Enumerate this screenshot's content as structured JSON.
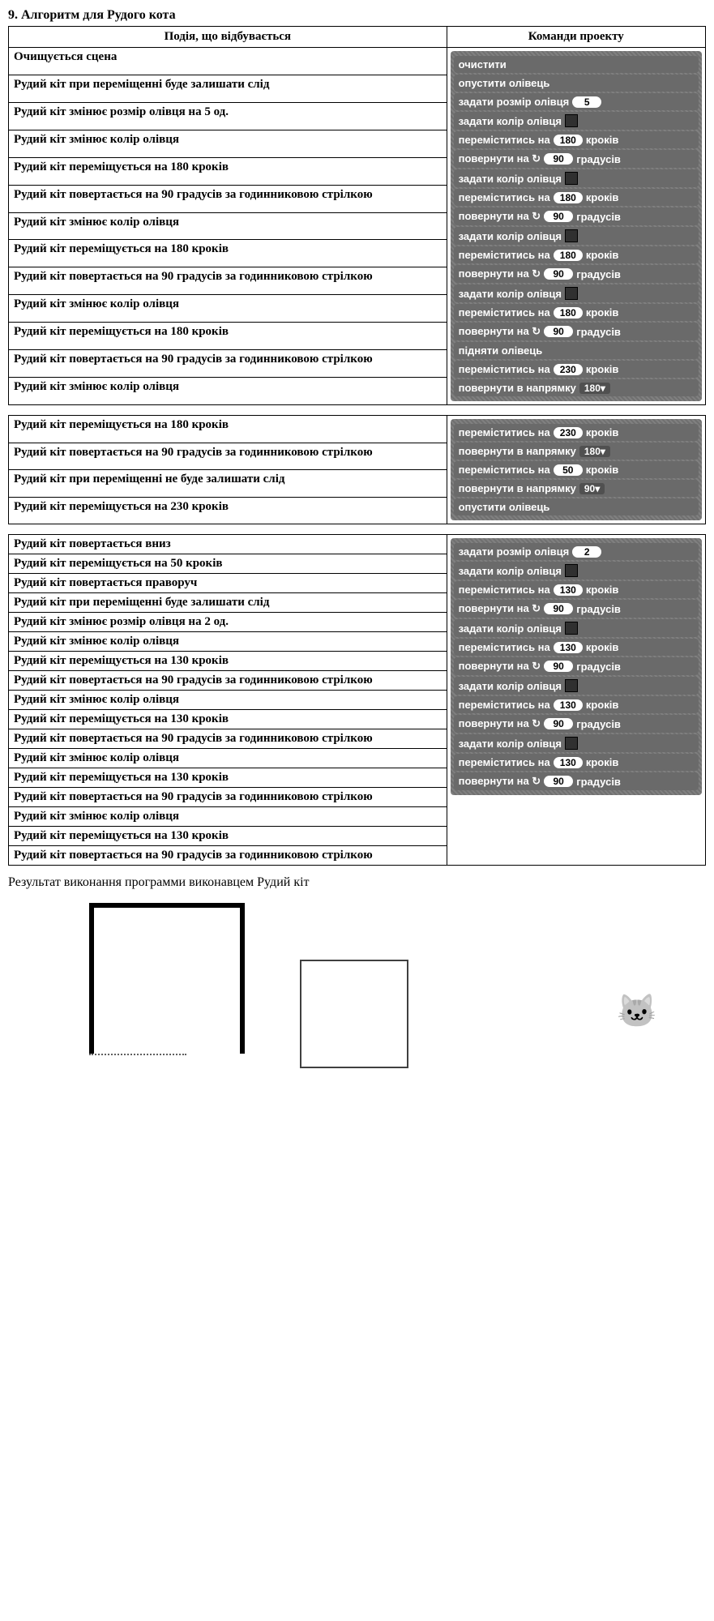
{
  "title": "9.  Алгоритм для Рудого кота",
  "headers": {
    "event": "Подія, що відбувається",
    "commands": "Команди проекту"
  },
  "table1": {
    "events": [
      "Очищується сцена",
      "Рудий кіт при переміщенні буде залишати слід",
      "Рудий кіт змінює розмір олівця на 5 од.",
      "Рудий кіт змінює колір олівця",
      "Рудий кіт переміщується на 180 кроків",
      "Рудий кіт повертається на 90 градусів за годинниковою стрілкою",
      "Рудий кіт змінює колір олівця",
      "Рудий кіт переміщується на 180 кроків",
      "Рудий кіт повертається на 90 градусів за годинниковою стрілкою",
      "Рудий кіт змінює колір олівця",
      "Рудий кіт переміщується на 180 кроків",
      "Рудий кіт повертається на 90 градусів за годинниковою стрілкою",
      "Рудий кіт змінює колір олівця"
    ],
    "blocks": [
      {
        "label": "очистити"
      },
      {
        "label": "опустити олівець"
      },
      {
        "label": "задати розмір олівця",
        "pill": "5"
      },
      {
        "label": "задати колір олівця",
        "swatch": true
      },
      {
        "label": "переміститись на",
        "pill": "180",
        "suffix": "кроків"
      },
      {
        "label": "повернути на ↻",
        "pill": "90",
        "suffix": "градусів"
      },
      {
        "label": "задати колір олівця",
        "swatch": true
      },
      {
        "label": "переміститись на",
        "pill": "180",
        "suffix": "кроків"
      },
      {
        "label": "повернути на ↻",
        "pill": "90",
        "suffix": "градусів"
      },
      {
        "label": "задати колір олівця",
        "swatch": true
      },
      {
        "label": "переміститись на",
        "pill": "180",
        "suffix": "кроків"
      },
      {
        "label": "повернути на ↻",
        "pill": "90",
        "suffix": "градусів"
      },
      {
        "label": "задати колір олівця",
        "swatch": true
      },
      {
        "label": "переміститись на",
        "pill": "180",
        "suffix": "кроків"
      },
      {
        "label": "повернути на ↻",
        "pill": "90",
        "suffix": "градусів"
      },
      {
        "label": "підняти олівець"
      },
      {
        "label": "переміститись на",
        "pill": "230",
        "suffix": "кроків"
      },
      {
        "label": "повернути в напрямку",
        "dropdown": "180▾"
      }
    ]
  },
  "table2": {
    "events": [
      "Рудий кіт переміщується на 180 кроків",
      "Рудий кіт повертається на 90 градусів за годинниковою стрілкою",
      "Рудий кіт при переміщенні не буде залишати слід",
      "Рудий кіт переміщується на 230 кроків"
    ],
    "blocks": [
      {
        "label": "переміститись на",
        "pill": "230",
        "suffix": "кроків"
      },
      {
        "label": "повернути в напрямку",
        "dropdown": "180▾"
      },
      {
        "label": "переміститись на",
        "pill": "50",
        "suffix": "кроків"
      },
      {
        "label": "повернути в напрямку",
        "dropdown": "90▾"
      },
      {
        "label": "опустити олівець"
      }
    ]
  },
  "table3": {
    "events": [
      "Рудий кіт повертається вниз",
      "Рудий кіт переміщується на 50 кроків",
      "Рудий кіт повертається праворуч",
      "Рудий кіт при переміщенні буде залишати слід",
      "Рудий кіт змінює розмір олівця на 2 од.",
      "Рудий кіт змінює колір олівця",
      "Рудий кіт переміщується на 130 кроків",
      "Рудий кіт повертається на 90 градусів за годинниковою стрілкою",
      "Рудий кіт змінює колір олівця",
      "Рудий кіт переміщується на 130 кроків",
      "Рудий кіт повертається на 90 градусів за годинниковою стрілкою",
      "Рудий кіт змінює колір олівця",
      "Рудий кіт переміщується на 130 кроків",
      "Рудий кіт повертається на 90 градусів за годинниковою стрілкою",
      "Рудий кіт змінює колір олівця",
      "Рудий кіт переміщується на 130 кроків",
      "Рудий кіт повертається на 90 градусів за годинниковою стрілкою"
    ],
    "blocks": [
      {
        "label": "задати розмір олівця",
        "pill": "2"
      },
      {
        "label": "задати колір олівця",
        "swatch": true
      },
      {
        "label": "переміститись на",
        "pill": "130",
        "suffix": "кроків"
      },
      {
        "label": "повернути на ↻",
        "pill": "90",
        "suffix": "градусів"
      },
      {
        "label": "задати колір олівця",
        "swatch": true
      },
      {
        "label": "переміститись на",
        "pill": "130",
        "suffix": "кроків"
      },
      {
        "label": "повернути на ↻",
        "pill": "90",
        "suffix": "градусів"
      },
      {
        "label": "задати колір олівця",
        "swatch": true
      },
      {
        "label": "переміститись на",
        "pill": "130",
        "suffix": "кроків"
      },
      {
        "label": "повернути на ↻",
        "pill": "90",
        "suffix": "градусів"
      },
      {
        "label": "задати колір олівця",
        "swatch": true
      },
      {
        "label": "переміститись на",
        "pill": "130",
        "suffix": "кроків"
      },
      {
        "label": "повернути на ↻",
        "pill": "90",
        "suffix": "градусів"
      }
    ]
  },
  "result_text": "Результат виконання программи виконавцем Рудий кіт",
  "cat_glyph": "🐱",
  "colors": {
    "block_bg": "#6a6a6a",
    "block_text": "#ffffff",
    "pill_bg": "#ffffff",
    "pill_text": "#000000",
    "border": "#000000"
  }
}
